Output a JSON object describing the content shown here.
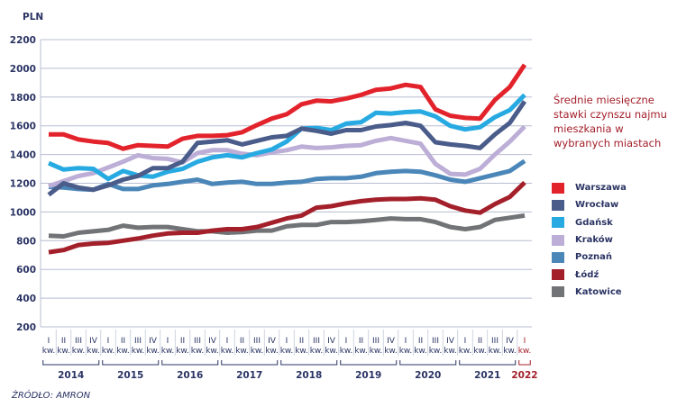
{
  "chart_data": {
    "type": "line",
    "title": "Średnie miesięczne stawki czynszu najmu mieszkania w wybranych miastach",
    "ylabel": "PLN",
    "xlabel": "",
    "ylim": [
      200,
      2200
    ],
    "yticks": [
      200,
      400,
      600,
      800,
      1000,
      1200,
      1400,
      1600,
      1800,
      2000,
      2200
    ],
    "grid": true,
    "legend_position": "right",
    "quarter_labels": [
      "I",
      "II",
      "III",
      "IV",
      "I",
      "II",
      "III",
      "IV",
      "I",
      "II",
      "III",
      "IV",
      "I",
      "II",
      "III",
      "IV",
      "I",
      "II",
      "III",
      "IV",
      "I",
      "II",
      "III",
      "IV",
      "I",
      "II",
      "III",
      "IV",
      "I",
      "II",
      "III",
      "IV",
      "I"
    ],
    "quarter_suffix": "kw.",
    "years": [
      {
        "label": "2014",
        "quarters": 4
      },
      {
        "label": "2015",
        "quarters": 4
      },
      {
        "label": "2016",
        "quarters": 4
      },
      {
        "label": "2017",
        "quarters": 4
      },
      {
        "label": "2018",
        "quarters": 4
      },
      {
        "label": "2019",
        "quarters": 4
      },
      {
        "label": "2020",
        "quarters": 4
      },
      {
        "label": "2021",
        "quarters": 4
      },
      {
        "label": "2022",
        "quarters": 1,
        "highlight": true
      }
    ],
    "series": [
      {
        "name": "Warszawa",
        "color": "#e3232c",
        "values": [
          1540,
          1540,
          1505,
          1490,
          1480,
          1440,
          1465,
          1460,
          1455,
          1510,
          1530,
          1530,
          1535,
          1555,
          1605,
          1650,
          1680,
          1750,
          1775,
          1770,
          1790,
          1815,
          1850,
          1860,
          1885,
          1870,
          1715,
          1670,
          1655,
          1650,
          1780,
          1870,
          2025
        ]
      },
      {
        "name": "Wrocław",
        "color": "#4a5c8a",
        "values": [
          1120,
          1200,
          1170,
          1155,
          1185,
          1225,
          1250,
          1305,
          1305,
          1350,
          1480,
          1490,
          1500,
          1470,
          1495,
          1520,
          1530,
          1580,
          1565,
          1545,
          1570,
          1570,
          1595,
          1605,
          1620,
          1600,
          1485,
          1470,
          1460,
          1445,
          1540,
          1620,
          1770
        ]
      },
      {
        "name": "Gdańsk",
        "color": "#27aae1",
        "values": [
          1340,
          1295,
          1305,
          1300,
          1230,
          1285,
          1255,
          1245,
          1280,
          1300,
          1350,
          1380,
          1395,
          1380,
          1410,
          1435,
          1490,
          1580,
          1585,
          1570,
          1615,
          1625,
          1690,
          1685,
          1695,
          1700,
          1665,
          1600,
          1575,
          1590,
          1660,
          1710,
          1815
        ]
      },
      {
        "name": "Kraków",
        "color": "#bcaed6",
        "values": [
          1180,
          1215,
          1250,
          1270,
          1310,
          1350,
          1395,
          1375,
          1370,
          1345,
          1410,
          1430,
          1430,
          1405,
          1395,
          1415,
          1430,
          1455,
          1445,
          1450,
          1460,
          1465,
          1495,
          1515,
          1495,
          1475,
          1335,
          1265,
          1260,
          1300,
          1400,
          1490,
          1595
        ]
      },
      {
        "name": "Poznań",
        "color": "#4a86b8",
        "values": [
          1175,
          1170,
          1160,
          1155,
          1195,
          1160,
          1160,
          1185,
          1195,
          1210,
          1225,
          1195,
          1205,
          1210,
          1195,
          1195,
          1205,
          1210,
          1230,
          1235,
          1235,
          1245,
          1270,
          1280,
          1285,
          1280,
          1255,
          1225,
          1210,
          1235,
          1260,
          1285,
          1355
        ]
      },
      {
        "name": "Łódź",
        "color": "#a3202b",
        "values": [
          720,
          735,
          770,
          780,
          785,
          800,
          815,
          835,
          850,
          855,
          855,
          870,
          880,
          880,
          895,
          925,
          955,
          975,
          1030,
          1040,
          1060,
          1075,
          1085,
          1090,
          1090,
          1095,
          1085,
          1040,
          1010,
          995,
          1055,
          1105,
          1205
        ]
      },
      {
        "name": "Katowice",
        "color": "#727376",
        "values": [
          835,
          830,
          855,
          865,
          875,
          905,
          890,
          895,
          895,
          880,
          865,
          865,
          855,
          860,
          870,
          870,
          900,
          910,
          910,
          930,
          930,
          935,
          945,
          955,
          950,
          950,
          930,
          895,
          880,
          895,
          945,
          960,
          975
        ]
      }
    ],
    "source": "ŹRÓDŁO: AMRON"
  },
  "legend": {
    "title": "Średnie miesięczne stawki czynszu najmu mieszkania w wybranych miastach"
  },
  "source_label": "ŹRÓDŁO: AMRON"
}
